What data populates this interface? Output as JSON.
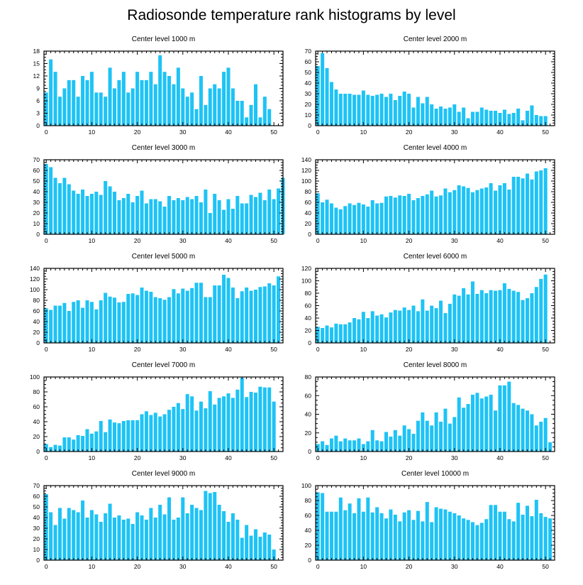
{
  "title": "Radiosonde temperature rank histograms by level",
  "colors": {
    "bar": "#1ec3f5",
    "axis": "#000000",
    "background": "#ffffff"
  },
  "chart_data": [
    {
      "type": "bar",
      "title": "Center level 1000 m",
      "ylim": [
        0,
        18
      ],
      "yticks": [
        0,
        3,
        6,
        9,
        12,
        15,
        18
      ],
      "xticks": [
        0,
        10,
        20,
        30,
        40,
        50
      ],
      "xlim": [
        -0.5,
        52
      ],
      "values": [
        8,
        16,
        13,
        7,
        9,
        11,
        11,
        7,
        12,
        11,
        13,
        8,
        8,
        7,
        14,
        9,
        11,
        13,
        8,
        9,
        13,
        11,
        11,
        13,
        10,
        17,
        13,
        12,
        10,
        14,
        9,
        7,
        8,
        4,
        12,
        5,
        9,
        10,
        9,
        13,
        14,
        9,
        6,
        6,
        2,
        5,
        10,
        2,
        7,
        4
      ]
    },
    {
      "type": "bar",
      "title": "Center level 2000 m",
      "ylim": [
        0,
        70
      ],
      "yticks": [
        0,
        10,
        20,
        30,
        40,
        50,
        60,
        70
      ],
      "xticks": [
        0,
        10,
        20,
        30,
        40,
        50
      ],
      "xlim": [
        -0.5,
        52
      ],
      "values": [
        56,
        68,
        54,
        41,
        34,
        30,
        30,
        30,
        29,
        29,
        33,
        29,
        28,
        29,
        30,
        27,
        30,
        24,
        28,
        32,
        30,
        17,
        27,
        21,
        27,
        20,
        16,
        18,
        16,
        17,
        20,
        13,
        17,
        7,
        13,
        13,
        17,
        15,
        14,
        14,
        12,
        15,
        11,
        12,
        16,
        5,
        14,
        19,
        10,
        9,
        9
      ]
    },
    {
      "type": "bar",
      "title": "Center level 3000 m",
      "ylim": [
        0,
        70
      ],
      "yticks": [
        0,
        10,
        20,
        30,
        40,
        50,
        60,
        70
      ],
      "xticks": [
        0,
        10,
        20,
        30,
        40,
        50
      ],
      "xlim": [
        -0.5,
        52
      ],
      "values": [
        66,
        63,
        53,
        48,
        53,
        47,
        41,
        38,
        42,
        36,
        38,
        40,
        37,
        50,
        45,
        40,
        32,
        34,
        38,
        30,
        36,
        41,
        29,
        33,
        33,
        31,
        26,
        36,
        32,
        34,
        32,
        35,
        33,
        36,
        30,
        42,
        20,
        38,
        32,
        23,
        33,
        24,
        36,
        29,
        29,
        37,
        35,
        39,
        32,
        42,
        33,
        43,
        53
      ]
    },
    {
      "type": "bar",
      "title": "Center level 4000 m",
      "ylim": [
        0,
        140
      ],
      "yticks": [
        0,
        20,
        40,
        60,
        80,
        100,
        120,
        140
      ],
      "xticks": [
        0,
        10,
        20,
        30,
        40,
        50
      ],
      "xlim": [
        -0.5,
        52
      ],
      "values": [
        77,
        60,
        65,
        58,
        50,
        47,
        53,
        58,
        55,
        59,
        56,
        52,
        64,
        58,
        59,
        71,
        72,
        69,
        73,
        72,
        76,
        64,
        68,
        72,
        75,
        82,
        71,
        73,
        86,
        79,
        83,
        92,
        90,
        87,
        79,
        83,
        86,
        88,
        96,
        82,
        92,
        96,
        84,
        108,
        108,
        105,
        114,
        103,
        118,
        120,
        124
      ]
    },
    {
      "type": "bar",
      "title": "Center level 5000 m",
      "ylim": [
        0,
        140
      ],
      "yticks": [
        0,
        20,
        40,
        60,
        80,
        100,
        120,
        140
      ],
      "xticks": [
        0,
        10,
        20,
        30,
        40,
        50
      ],
      "xlim": [
        -0.5,
        52
      ],
      "values": [
        65,
        62,
        70,
        70,
        75,
        60,
        77,
        80,
        66,
        80,
        77,
        63,
        80,
        94,
        87,
        85,
        76,
        77,
        92,
        93,
        90,
        104,
        98,
        96,
        86,
        84,
        81,
        86,
        101,
        93,
        102,
        98,
        103,
        113,
        113,
        86,
        86,
        108,
        108,
        128,
        122,
        104,
        84,
        97,
        104,
        98,
        100,
        105,
        106,
        112,
        108,
        125
      ]
    },
    {
      "type": "bar",
      "title": "Center level 6000 m",
      "ylim": [
        0,
        120
      ],
      "yticks": [
        0,
        20,
        40,
        60,
        80,
        100,
        120
      ],
      "xticks": [
        0,
        10,
        20,
        30,
        40,
        50
      ],
      "xlim": [
        -0.5,
        52
      ],
      "values": [
        26,
        24,
        28,
        25,
        31,
        30,
        30,
        33,
        40,
        38,
        50,
        40,
        51,
        44,
        46,
        41,
        49,
        53,
        52,
        57,
        53,
        60,
        51,
        70,
        52,
        60,
        56,
        68,
        48,
        63,
        78,
        76,
        88,
        78,
        99,
        79,
        85,
        80,
        85,
        84,
        85,
        96,
        87,
        84,
        82,
        69,
        72,
        80,
        90,
        103,
        110
      ]
    },
    {
      "type": "bar",
      "title": "Center level 7000 m",
      "ylim": [
        0,
        100
      ],
      "yticks": [
        0,
        20,
        40,
        60,
        80,
        100
      ],
      "xticks": [
        0,
        10,
        20,
        30,
        40,
        50
      ],
      "xlim": [
        -0.5,
        52
      ],
      "values": [
        10,
        6,
        9,
        8,
        19,
        19,
        16,
        22,
        21,
        30,
        24,
        27,
        41,
        26,
        43,
        39,
        38,
        41,
        42,
        42,
        42,
        50,
        54,
        49,
        52,
        47,
        50,
        56,
        60,
        65,
        57,
        77,
        74,
        55,
        67,
        58,
        81,
        63,
        72,
        74,
        78,
        72,
        83,
        99,
        73,
        80,
        79,
        87,
        86,
        86,
        67
      ]
    },
    {
      "type": "bar",
      "title": "Center level 8000 m",
      "ylim": [
        0,
        80
      ],
      "yticks": [
        0,
        20,
        40,
        60,
        80
      ],
      "xticks": [
        0,
        10,
        20,
        30,
        40,
        50
      ],
      "xlim": [
        -0.5,
        52
      ],
      "values": [
        8,
        11,
        7,
        14,
        17,
        11,
        14,
        12,
        12,
        14,
        8,
        11,
        23,
        12,
        11,
        21,
        16,
        23,
        17,
        28,
        24,
        19,
        33,
        42,
        33,
        28,
        42,
        32,
        46,
        30,
        37,
        58,
        47,
        51,
        61,
        63,
        57,
        59,
        61,
        44,
        71,
        71,
        75,
        52,
        50,
        46,
        44,
        40,
        28,
        32,
        36,
        10
      ]
    },
    {
      "type": "bar",
      "title": "Center level 9000 m",
      "ylim": [
        0,
        70
      ],
      "yticks": [
        0,
        10,
        20,
        30,
        40,
        50,
        60,
        70
      ],
      "xticks": [
        0,
        10,
        20,
        30,
        40,
        50
      ],
      "xlim": [
        -0.5,
        52
      ],
      "values": [
        62,
        45,
        33,
        49,
        39,
        49,
        47,
        45,
        56,
        40,
        47,
        43,
        36,
        44,
        53,
        40,
        42,
        38,
        39,
        34,
        45,
        42,
        38,
        49,
        40,
        52,
        43,
        59,
        38,
        40,
        59,
        44,
        52,
        49,
        47,
        65,
        63,
        64,
        52,
        46,
        36,
        44,
        38,
        21,
        33,
        23,
        29,
        22,
        26,
        24,
        10
      ]
    },
    {
      "type": "bar",
      "title": "Center level 10000 m",
      "ylim": [
        0,
        100
      ],
      "yticks": [
        0,
        20,
        40,
        60,
        80,
        100
      ],
      "xticks": [
        0,
        10,
        20,
        30,
        40,
        50
      ],
      "xlim": [
        -0.5,
        52
      ],
      "values": [
        91,
        90,
        65,
        65,
        65,
        84,
        67,
        76,
        63,
        83,
        65,
        84,
        64,
        71,
        63,
        56,
        68,
        61,
        52,
        64,
        67,
        54,
        66,
        52,
        78,
        51,
        71,
        69,
        68,
        65,
        63,
        60,
        56,
        54,
        51,
        47,
        50,
        55,
        74,
        74,
        65,
        65,
        55,
        52,
        77,
        61,
        73,
        59,
        81,
        63,
        58,
        56
      ]
    }
  ]
}
